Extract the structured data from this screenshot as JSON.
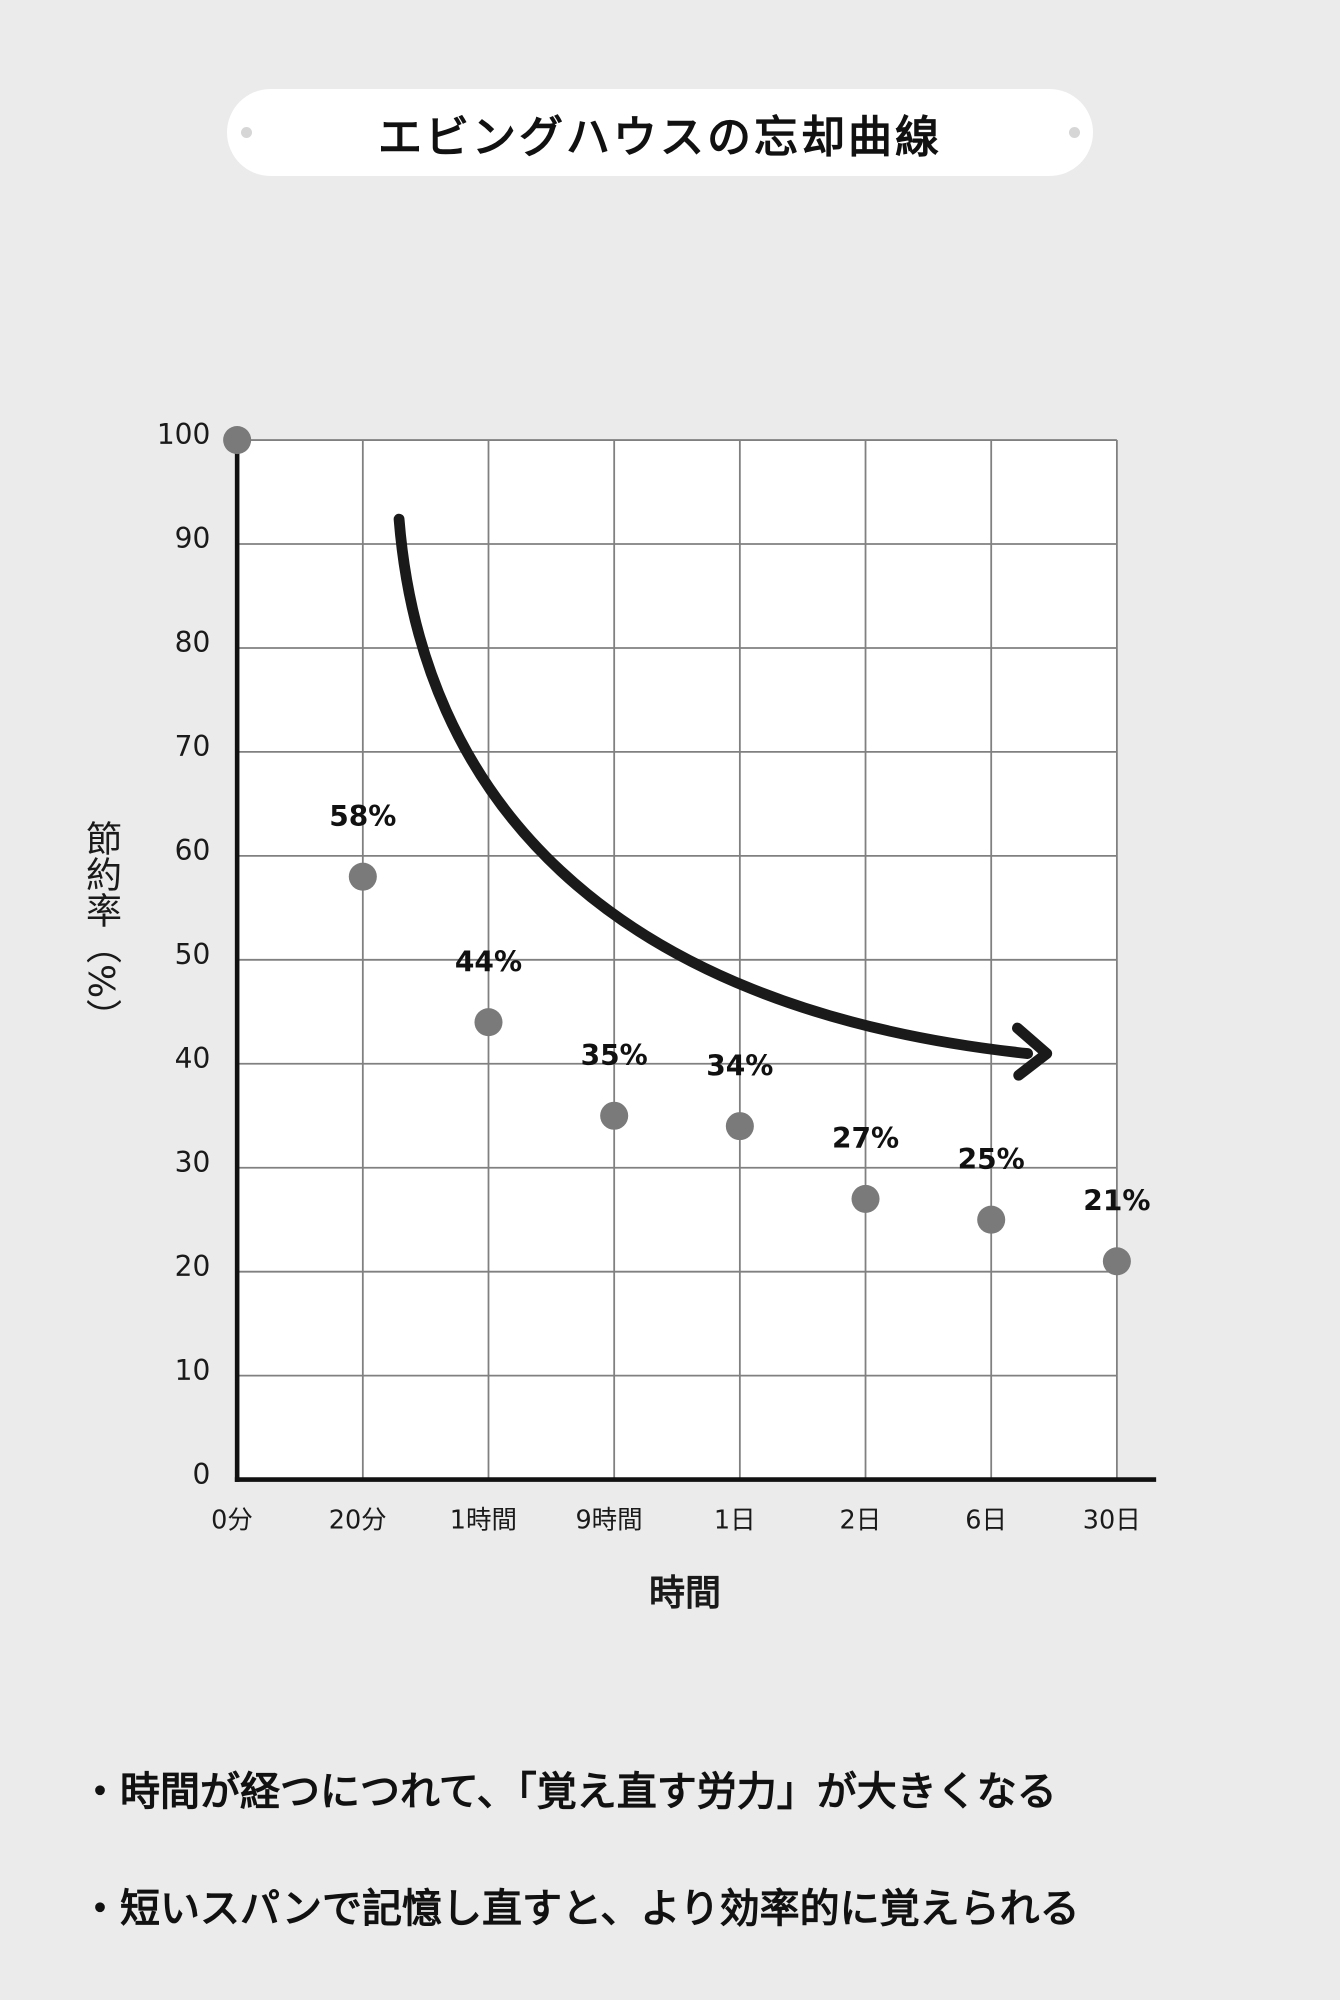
{
  "chart_data": {
    "type": "scatter",
    "title": "エビングハウスの忘却曲線",
    "xlabel": "時間",
    "ylabel": "節約率（%）",
    "categories": [
      "0分",
      "20分",
      "1時間",
      "9時間",
      "1日",
      "2日",
      "6日",
      "30日"
    ],
    "series": [
      {
        "values": [
          100,
          58,
          44,
          35,
          34,
          27,
          25,
          21
        ],
        "color": "#7a7a7a"
      }
    ],
    "data_labels": [
      null,
      "58%",
      "44%",
      "35%",
      "34%",
      "27%",
      "25%",
      "21%"
    ],
    "ylim": [
      0,
      100
    ],
    "yticks": [
      0,
      10,
      20,
      30,
      40,
      50,
      60,
      70,
      80,
      90,
      100
    ],
    "grid": true
  },
  "notes": [
    "・時間が経つにつれて、「覚え直す労力」が大きくなる",
    "・短いスパンで記憶し直すと、より効率的に覚えられる"
  ],
  "colors": {
    "background": "#ebebeb",
    "panel": "#ffffff",
    "grid": "#808080",
    "axis": "#111111",
    "arrow": "#1a1a1a"
  }
}
